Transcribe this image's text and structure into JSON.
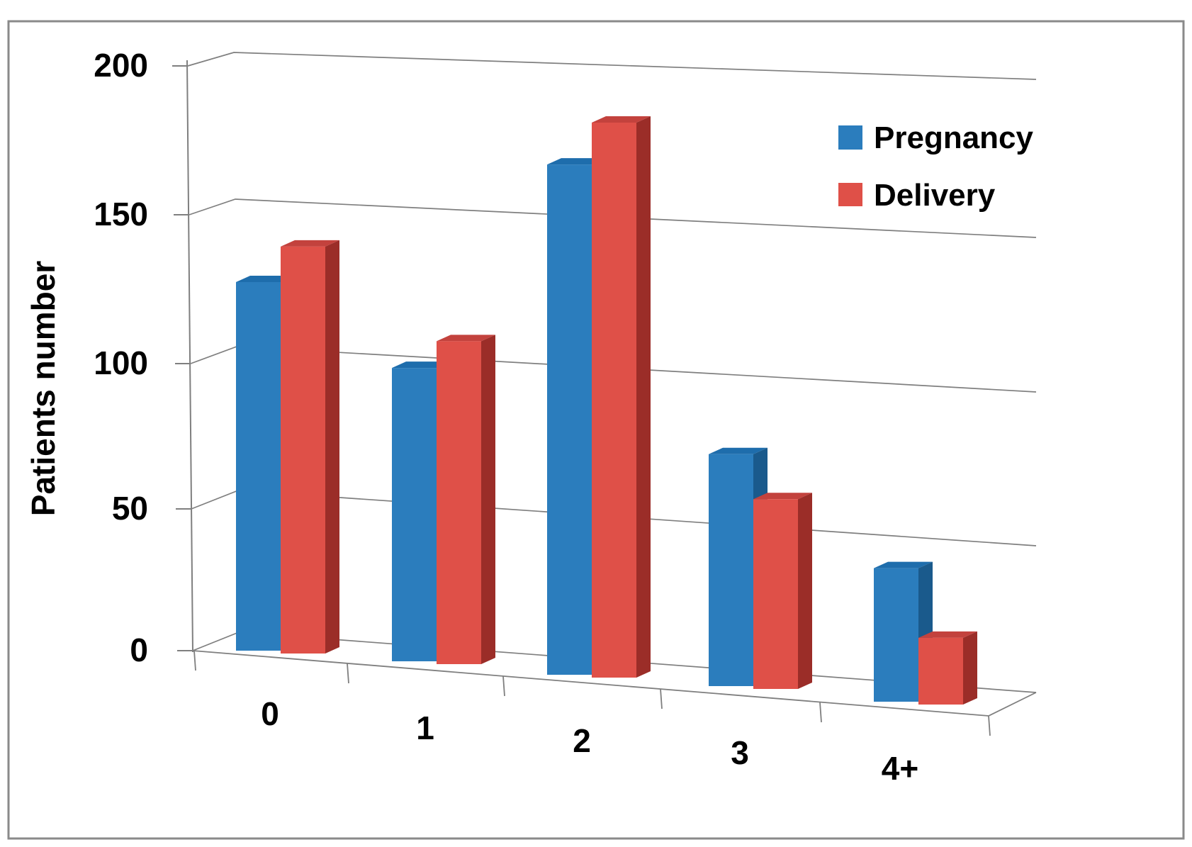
{
  "figure": {
    "background": "#ffffff",
    "border_color": "#8a8a8a"
  },
  "chart_data": {
    "type": "bar",
    "style": "3d-clustered-column",
    "title": "",
    "xlabel": "",
    "ylabel": "Patients number",
    "categories": [
      "0",
      "1",
      "2",
      "3",
      "4+"
    ],
    "series": [
      {
        "name": "Pregnancy",
        "color": "#2B7DBD",
        "color_top": "#1E6DAC",
        "color_side": "#1A5A8C",
        "values": [
          125,
          99,
          171,
          77,
          44
        ]
      },
      {
        "name": "Delivery",
        "color": "#DF5048",
        "color_top": "#C3423D",
        "color_side": "#9B2D28",
        "values": [
          138,
          109,
          186,
          63,
          22
        ]
      }
    ],
    "ylim": [
      0,
      200
    ],
    "yticks": [
      0,
      50,
      100,
      150,
      200
    ],
    "ytick_labels": [
      "0",
      "50",
      "100",
      "150",
      "200"
    ],
    "grid": true,
    "gridline_color": "#7f7f7f",
    "legend_position": "upper-right"
  }
}
